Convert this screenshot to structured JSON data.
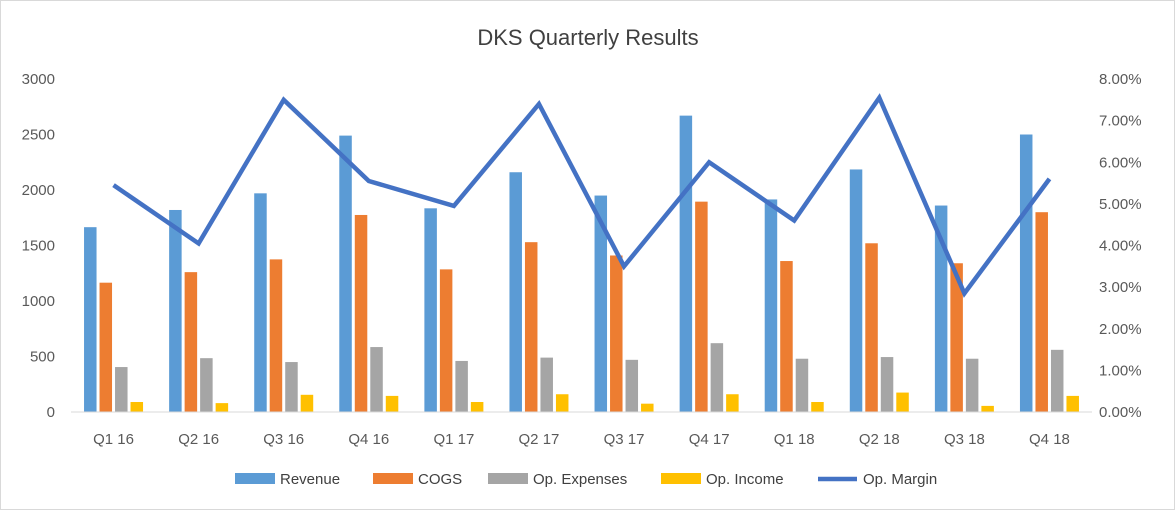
{
  "chart_data": {
    "type": "bar",
    "title": "DKS Quarterly Results",
    "categories": [
      "Q1 16",
      "Q2 16",
      "Q3 16",
      "Q4 16",
      "Q1 17",
      "Q2 17",
      "Q3 17",
      "Q4 17",
      "Q1 18",
      "Q2 18",
      "Q3 18",
      "Q4 18"
    ],
    "series": [
      {
        "name": "Revenue",
        "axis": "left",
        "color": "#5b9bd5",
        "values": [
          1665,
          1820,
          1970,
          2490,
          1835,
          2160,
          1950,
          2670,
          1915,
          2185,
          1860,
          2500
        ]
      },
      {
        "name": "COGS",
        "axis": "left",
        "color": "#ed7d31",
        "values": [
          1165,
          1260,
          1375,
          1775,
          1285,
          1530,
          1410,
          1895,
          1360,
          1520,
          1340,
          1800
        ]
      },
      {
        "name": "Op. Expenses",
        "axis": "left",
        "color": "#a5a5a5",
        "values": [
          405,
          485,
          450,
          585,
          460,
          490,
          470,
          620,
          480,
          495,
          480,
          560
        ]
      },
      {
        "name": "Op. Income",
        "axis": "left",
        "color": "#ffc000",
        "values": [
          90,
          80,
          155,
          145,
          90,
          160,
          75,
          160,
          90,
          175,
          55,
          145
        ]
      }
    ],
    "line_series": {
      "name": "Op. Margin",
      "axis": "right",
      "color": "#4472c4",
      "values": [
        5.45,
        4.05,
        7.5,
        5.55,
        4.95,
        7.4,
        3.5,
        6.0,
        4.6,
        7.55,
        2.85,
        5.6
      ]
    },
    "y_left": {
      "min": 0,
      "max": 3000,
      "ticks": [
        "0",
        "500",
        "1000",
        "1500",
        "2000",
        "2500",
        "3000"
      ]
    },
    "y_right": {
      "min": 0,
      "max": 8,
      "ticks": [
        "0.00%",
        "1.00%",
        "2.00%",
        "3.00%",
        "4.00%",
        "5.00%",
        "6.00%",
        "7.00%",
        "8.00%"
      ]
    },
    "legend": {
      "position": "bottom",
      "items": [
        "Revenue",
        "COGS",
        "Op. Expenses",
        "Op. Income",
        "Op. Margin"
      ]
    },
    "grid": false
  }
}
